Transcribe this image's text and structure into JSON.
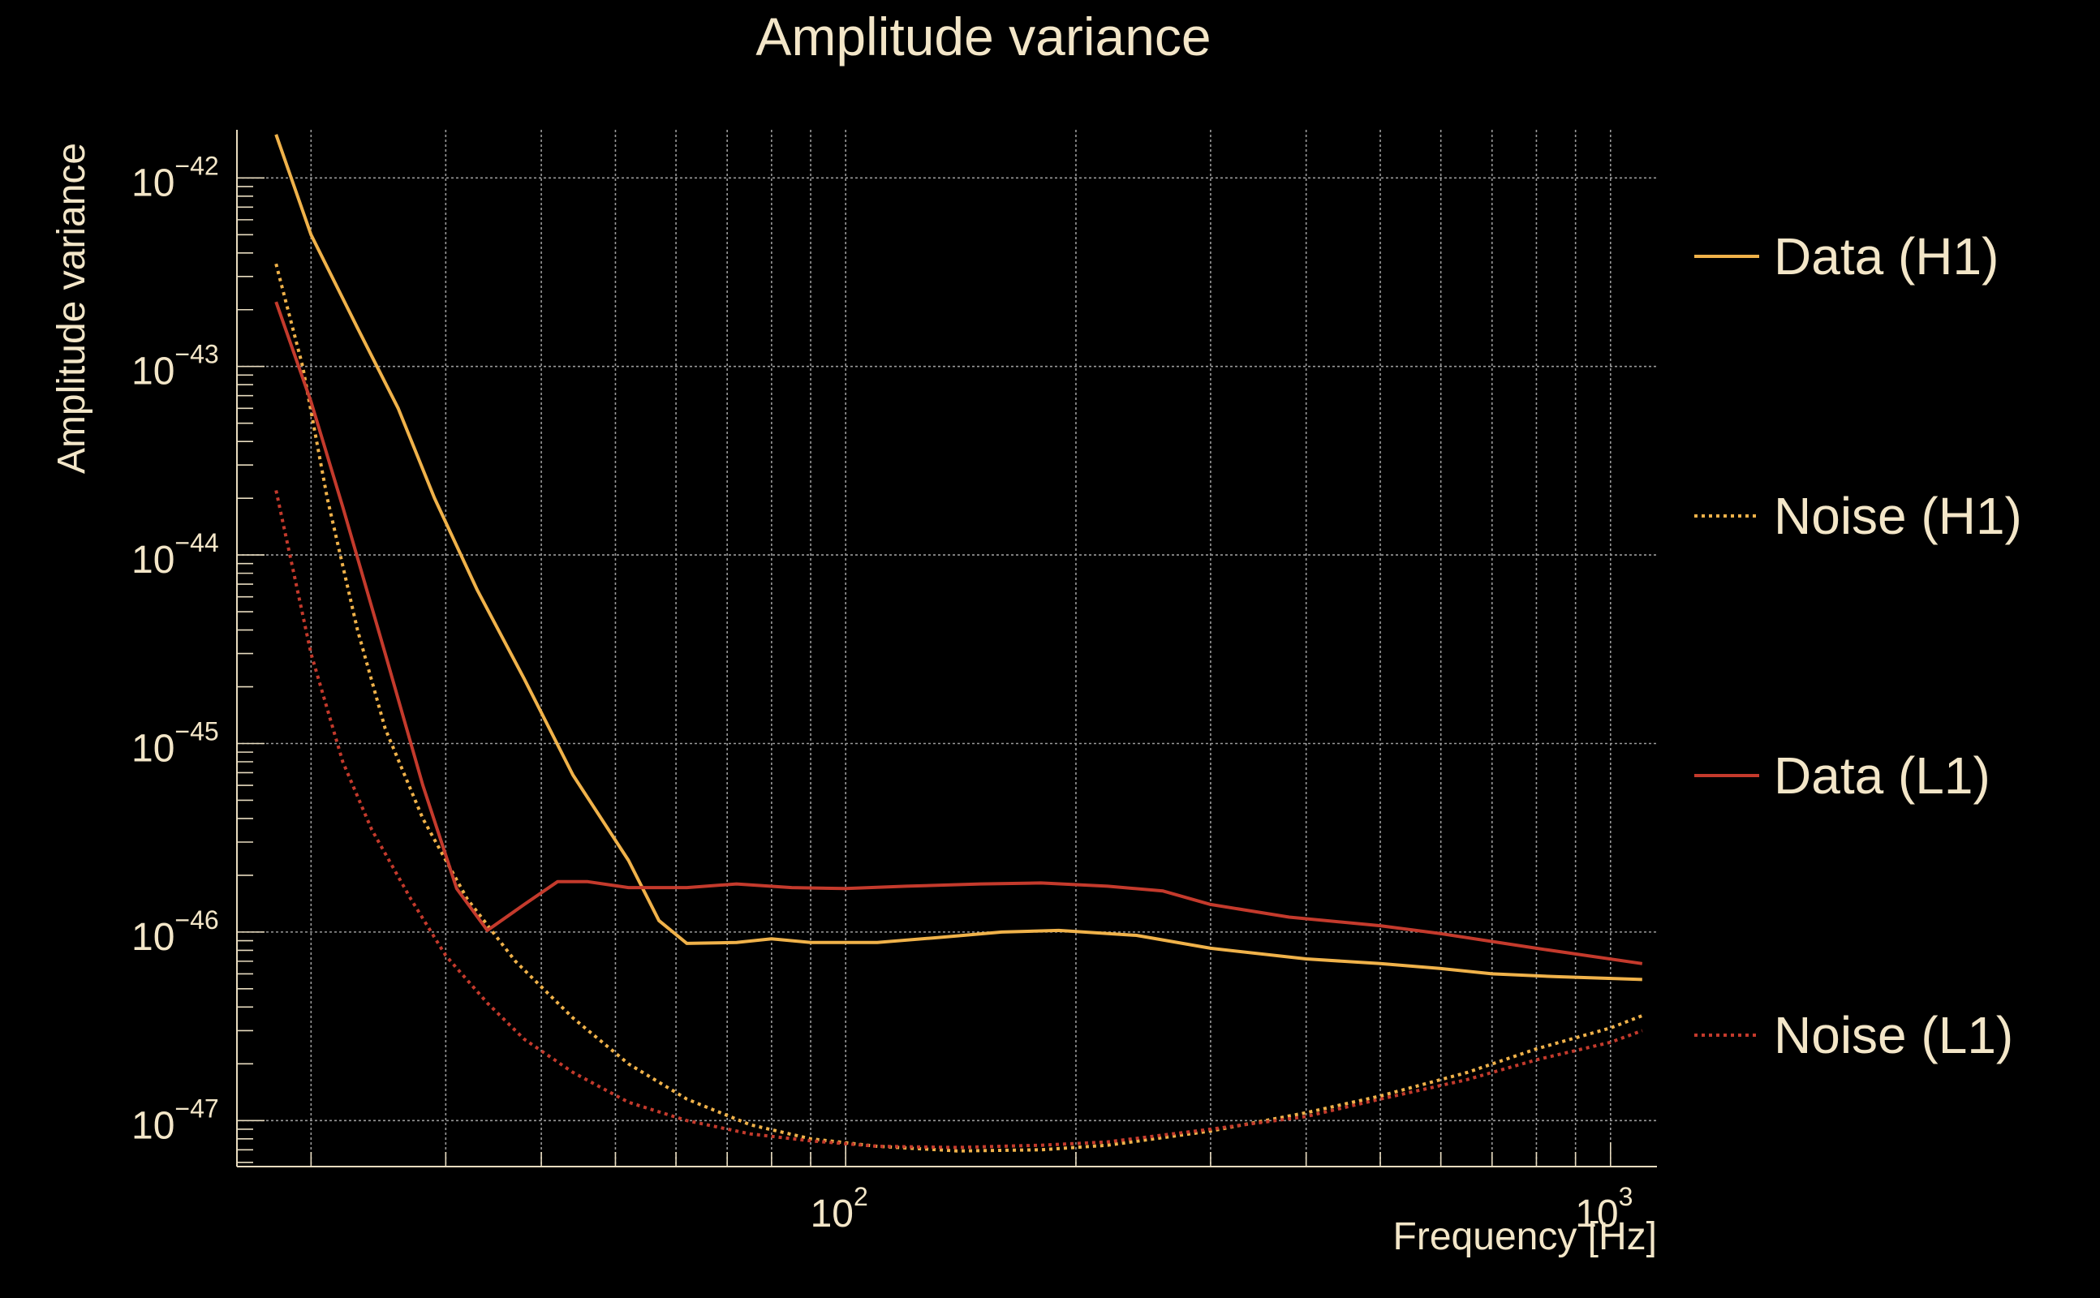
{
  "chart_data": {
    "type": "line",
    "title": "Amplitude variance",
    "xlabel": "Frequency [Hz]",
    "ylabel": "Amplitude variance",
    "x_scale": "log",
    "y_scale": "log",
    "xlim": [
      16,
      1150
    ],
    "ylim": [
      5.7e-48,
      1.8e-42
    ],
    "grid": true,
    "legend_position": "right",
    "x_ticks": [
      {
        "value": 100,
        "base": "10",
        "exp": "2"
      },
      {
        "value": 1000,
        "base": "10",
        "exp": "3"
      }
    ],
    "y_ticks": [
      {
        "value": 1e-42,
        "base": "10",
        "exp": "−42"
      },
      {
        "value": 1e-43,
        "base": "10",
        "exp": "−43"
      },
      {
        "value": 1e-44,
        "base": "10",
        "exp": "−44"
      },
      {
        "value": 1e-45,
        "base": "10",
        "exp": "−45"
      },
      {
        "value": 1e-46,
        "base": "10",
        "exp": "−46"
      },
      {
        "value": 1e-47,
        "base": "10",
        "exp": "−47"
      }
    ],
    "series": [
      {
        "name": "Data (H1)",
        "color": "#f0b24a",
        "dash": "solid",
        "points": [
          [
            18,
            1.7e-42
          ],
          [
            20,
            5e-43
          ],
          [
            23,
            1.6e-43
          ],
          [
            26,
            6e-44
          ],
          [
            29,
            2e-44
          ],
          [
            33,
            6.5e-45
          ],
          [
            38,
            2.2e-45
          ],
          [
            44,
            6.8e-46
          ],
          [
            52,
            2.4e-46
          ],
          [
            57,
            1.15e-46
          ],
          [
            62,
            8.7e-47
          ],
          [
            72,
            8.8e-47
          ],
          [
            80,
            9.2e-47
          ],
          [
            90,
            8.8e-47
          ],
          [
            110,
            8.8e-47
          ],
          [
            130,
            9.3e-47
          ],
          [
            160,
            1e-46
          ],
          [
            190,
            1.02e-46
          ],
          [
            240,
            9.6e-47
          ],
          [
            300,
            8.2e-47
          ],
          [
            400,
            7.2e-47
          ],
          [
            500,
            6.8e-47
          ],
          [
            600,
            6.4e-47
          ],
          [
            700,
            6e-47
          ],
          [
            850,
            5.8e-47
          ],
          [
            1100,
            5.6e-47
          ]
        ]
      },
      {
        "name": "Noise (H1)",
        "color": "#f0b24a",
        "dash": "dotted",
        "points": [
          [
            18,
            3.5e-43
          ],
          [
            19.5,
            1e-43
          ],
          [
            21,
            2e-44
          ],
          [
            23,
            4e-45
          ],
          [
            25,
            1.2e-45
          ],
          [
            28,
            4e-46
          ],
          [
            32,
            1.5e-46
          ],
          [
            37,
            7e-47
          ],
          [
            44,
            3.5e-47
          ],
          [
            52,
            2e-47
          ],
          [
            62,
            1.3e-47
          ],
          [
            75,
            9.5e-48
          ],
          [
            90,
            8e-48
          ],
          [
            110,
            7.3e-48
          ],
          [
            140,
            6.9e-48
          ],
          [
            180,
            7e-48
          ],
          [
            220,
            7.4e-48
          ],
          [
            300,
            8.8e-48
          ],
          [
            400,
            1.1e-47
          ],
          [
            500,
            1.35e-47
          ],
          [
            650,
            1.8e-47
          ],
          [
            800,
            2.4e-47
          ],
          [
            1000,
            3.1e-47
          ],
          [
            1100,
            3.6e-47
          ]
        ]
      },
      {
        "name": "Data (L1)",
        "color": "#c43a2c",
        "dash": "solid",
        "points": [
          [
            18,
            2.2e-43
          ],
          [
            20,
            6.5e-44
          ],
          [
            22,
            1.8e-44
          ],
          [
            25,
            3e-45
          ],
          [
            28,
            6e-46
          ],
          [
            31,
            1.7e-46
          ],
          [
            34,
            1.02e-46
          ],
          [
            38,
            1.4e-46
          ],
          [
            42,
            1.85e-46
          ],
          [
            46,
            1.85e-46
          ],
          [
            52,
            1.72e-46
          ],
          [
            62,
            1.72e-46
          ],
          [
            72,
            1.8e-46
          ],
          [
            85,
            1.72e-46
          ],
          [
            100,
            1.7e-46
          ],
          [
            120,
            1.75e-46
          ],
          [
            150,
            1.8e-46
          ],
          [
            180,
            1.82e-46
          ],
          [
            220,
            1.75e-46
          ],
          [
            260,
            1.65e-46
          ],
          [
            300,
            1.4e-46
          ],
          [
            380,
            1.2e-46
          ],
          [
            500,
            1.08e-46
          ],
          [
            600,
            9.8e-47
          ],
          [
            800,
            8.2e-47
          ],
          [
            1100,
            6.8e-47
          ]
        ]
      },
      {
        "name": "Noise (L1)",
        "color": "#c43a2c",
        "dash": "dotted",
        "points": [
          [
            18,
            2.2e-44
          ],
          [
            20,
            3e-45
          ],
          [
            22,
            8e-46
          ],
          [
            24,
            3.5e-46
          ],
          [
            27,
            1.5e-46
          ],
          [
            30,
            7.5e-47
          ],
          [
            34,
            4.2e-47
          ],
          [
            38,
            2.7e-47
          ],
          [
            44,
            1.8e-47
          ],
          [
            52,
            1.25e-47
          ],
          [
            62,
            1e-47
          ],
          [
            75,
            8.5e-48
          ],
          [
            90,
            7.8e-48
          ],
          [
            110,
            7.3e-48
          ],
          [
            140,
            7.2e-48
          ],
          [
            180,
            7.4e-48
          ],
          [
            220,
            7.7e-48
          ],
          [
            300,
            9e-48
          ],
          [
            400,
            1.05e-47
          ],
          [
            500,
            1.3e-47
          ],
          [
            650,
            1.65e-47
          ],
          [
            800,
            2.1e-47
          ],
          [
            1000,
            2.6e-47
          ],
          [
            1100,
            3e-47
          ]
        ]
      }
    ]
  }
}
